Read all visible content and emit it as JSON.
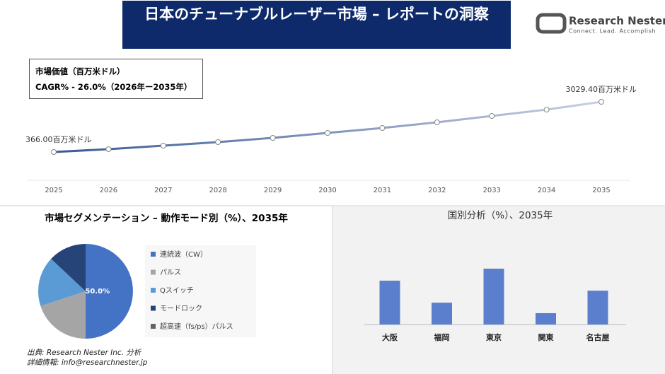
{
  "header": {
    "title": "日本のチューナブルレーザー市場 – レポートの洞察"
  },
  "logo": {
    "name": "Research Nester",
    "tagline": "Connect. Lead. Accomplish"
  },
  "market_box": {
    "label": "市場価値（百万米ドル）",
    "cagr": "CAGR% - 26.0%（2026年ー2035年）"
  },
  "chart_data": [
    {
      "type": "line",
      "categories": [
        "2025",
        "2026",
        "2027",
        "2028",
        "2029",
        "2030",
        "2031",
        "2032",
        "2033",
        "2034",
        "2035"
      ],
      "values": [
        366.0,
        516,
        703,
        891,
        1116,
        1378,
        1641,
        1941,
        2278,
        2616,
        3029.4
      ],
      "value_labels": [
        "366.00百万米ドル",
        null,
        null,
        null,
        null,
        null,
        null,
        null,
        null,
        null,
        "3029.40百万米ドル"
      ],
      "colors": [
        "#3a5a94",
        "#c8d0e2"
      ]
    },
    {
      "type": "pie",
      "title": "市場セグメンテーション – 動作モード別（%）、2035年",
      "categories": [
        "連続波（CW）",
        "パルス",
        "Qスイッチ",
        "モードロック",
        "超高速（fs/ps）パルス"
      ],
      "values": [
        50.0,
        20,
        17,
        13,
        0
      ],
      "value_labels": [
        "50.0%",
        null,
        null,
        null,
        null
      ],
      "colors": [
        "#4472c4",
        "#a5a5a5",
        "#5b9bd5",
        "#264478",
        "#636363"
      ]
    },
    {
      "type": "bar",
      "title": "国別分析（%）、2035年",
      "categories": [
        "大阪",
        "福岡",
        "東京",
        "関東",
        "名古屋"
      ],
      "values": [
        26.3,
        13.1,
        33.5,
        6.8,
        20.3
      ],
      "color": "#5b7fcc"
    }
  ],
  "source": {
    "line1": "出典: Research Nester Inc. 分析",
    "line2": "詳細情報: info@researchnester.jp"
  }
}
